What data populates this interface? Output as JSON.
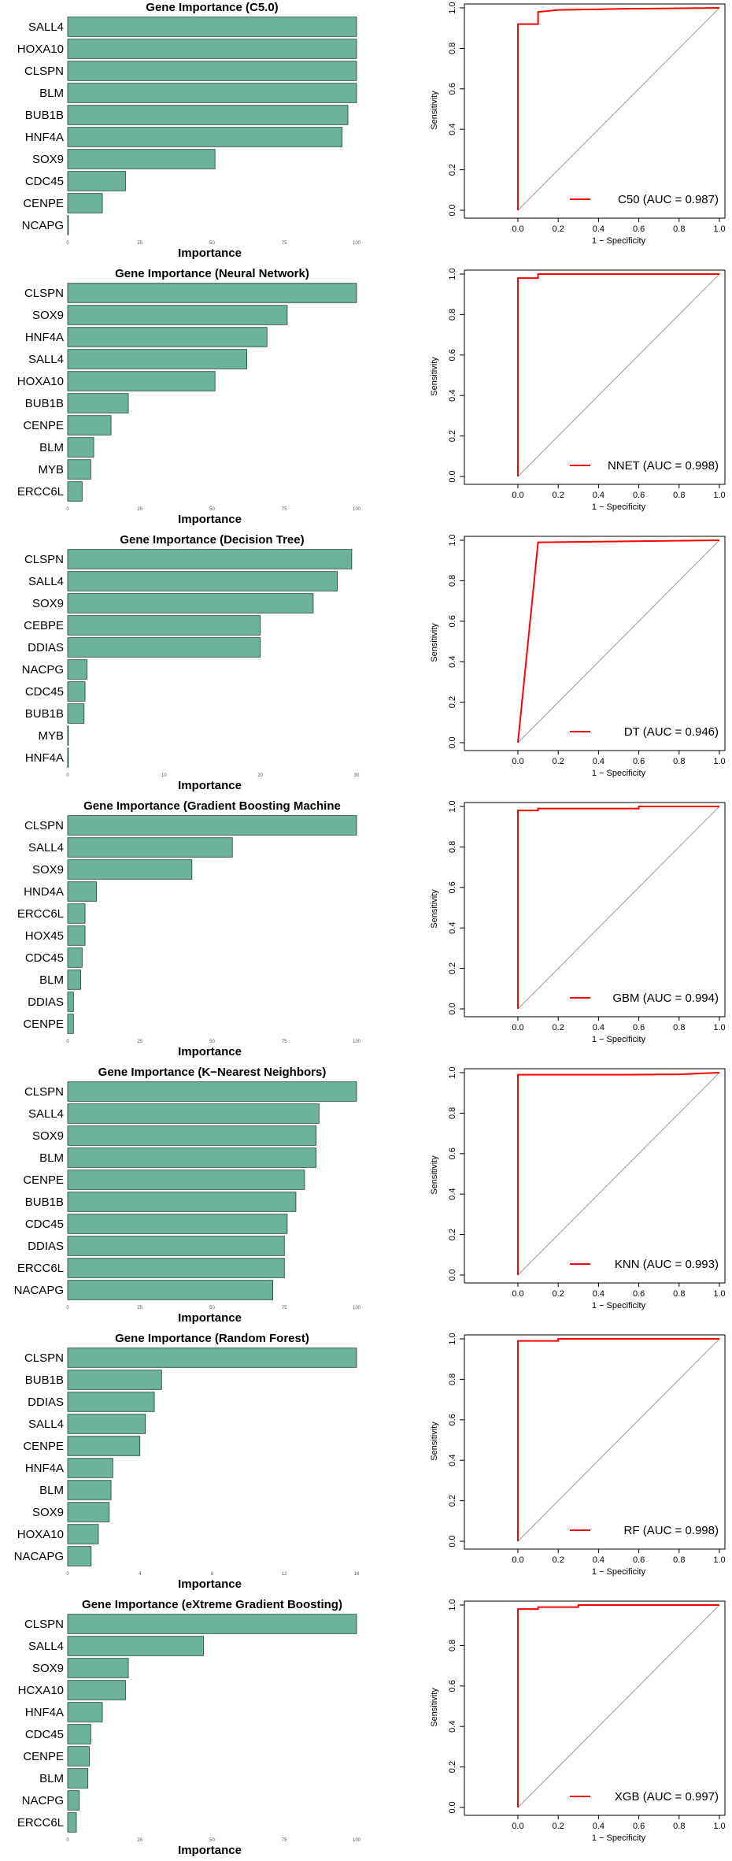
{
  "colors": {
    "bar_fill": "#6DB39B",
    "bar_stroke": "#1F3F35",
    "roc_line": "#FF0000",
    "diagonal": "#9A9A9A"
  },
  "roc_axes": {
    "xlabel": "1 − Specificity",
    "ylabel": "Sensitivity",
    "ticks": [
      "0.0",
      "0.2",
      "0.4",
      "0.6",
      "0.8",
      "1.0"
    ]
  },
  "chart_data": [
    {
      "type": "bar",
      "title": "Gene Importance (C5.0)",
      "xlabel": "Importance",
      "categories": [
        "SALL4",
        "HOXA10",
        "CLSPN",
        "BLM",
        "BUB1B",
        "HNF4A",
        "SOX9",
        "CDC45",
        "CENPE",
        "NCAPG"
      ],
      "values": [
        100,
        100,
        100,
        100,
        97,
        95,
        51,
        20,
        12,
        0
      ],
      "xlim": [
        0,
        100
      ],
      "xticks": [
        "0",
        "25",
        "50",
        "75",
        "100"
      ]
    },
    {
      "type": "line",
      "legend": "C50 (AUC = 0.987)",
      "xlim": [
        0,
        1
      ],
      "ylim": [
        0,
        1
      ],
      "points": [
        [
          0,
          0
        ],
        [
          0,
          0.92
        ],
        [
          0.1,
          0.92
        ],
        [
          0.1,
          0.98
        ],
        [
          0.2,
          0.99
        ],
        [
          0.5,
          0.995
        ],
        [
          1.0,
          1.0
        ]
      ]
    },
    {
      "type": "bar",
      "title": "Gene Importance (Neural Network)",
      "xlabel": "Importance",
      "categories": [
        "CLSPN",
        "SOX9",
        "HNF4A",
        "SALL4",
        "HOXA10",
        "BUB1B",
        "CENPE",
        "BLM",
        "MYB",
        "ERCC6L"
      ],
      "values": [
        100,
        76,
        69,
        62,
        51,
        21,
        15,
        9,
        8,
        5
      ],
      "xlim": [
        0,
        100
      ],
      "xticks": [
        "0",
        "25",
        "50",
        "75",
        "100"
      ]
    },
    {
      "type": "line",
      "legend": "NNET (AUC = 0.998)",
      "xlim": [
        0,
        1
      ],
      "ylim": [
        0,
        1
      ],
      "points": [
        [
          0,
          0
        ],
        [
          0,
          0.98
        ],
        [
          0.1,
          0.98
        ],
        [
          0.1,
          1.0
        ],
        [
          1.0,
          1.0
        ]
      ]
    },
    {
      "type": "bar",
      "title": "Gene Importance (Decision Tree)",
      "xlabel": "Importance",
      "categories": [
        "CLSPN",
        "SALL4",
        "SOX9",
        "CEBPE",
        "DDIAS",
        "NACPG",
        "CDC45",
        "BUB1B",
        "MYB",
        "HNF4A"
      ],
      "values": [
        29.5,
        28,
        25.5,
        20,
        20,
        2,
        1.8,
        1.7,
        0,
        0
      ],
      "xlim": [
        0,
        30
      ],
      "xticks": [
        "0",
        "10",
        "20",
        "30"
      ]
    },
    {
      "type": "line",
      "legend": "DT (AUC = 0.946)",
      "xlim": [
        0,
        1
      ],
      "ylim": [
        0,
        1
      ],
      "points": [
        [
          0,
          0
        ],
        [
          0.1,
          0.99
        ],
        [
          1.0,
          1.0
        ]
      ]
    },
    {
      "type": "bar",
      "title": "Gene Importance (Gradient Boosting Machine",
      "xlabel": "Importance",
      "categories": [
        "CLSPN",
        "SALL4",
        "SOX9",
        "HND4A",
        "ERCC6L",
        "HOX45",
        "CDC45",
        "BLM",
        "DDIAS",
        "CENPE"
      ],
      "values": [
        100,
        57,
        43,
        10,
        6,
        6,
        5,
        4.5,
        2,
        2
      ],
      "xlim": [
        0,
        100
      ],
      "xticks": [
        "0",
        "25",
        "50",
        "75",
        "100"
      ]
    },
    {
      "type": "line",
      "legend": "GBM (AUC = 0.994)",
      "xlim": [
        0,
        1
      ],
      "ylim": [
        0,
        1
      ],
      "points": [
        [
          0,
          0
        ],
        [
          0,
          0.98
        ],
        [
          0.1,
          0.98
        ],
        [
          0.1,
          0.99
        ],
        [
          0.6,
          0.99
        ],
        [
          0.6,
          1.0
        ],
        [
          1.0,
          1.0
        ]
      ]
    },
    {
      "type": "bar",
      "title": "Gene Importance (K−Nearest Neighbors)",
      "xlabel": "Importance",
      "categories": [
        "CLSPN",
        "SALL4",
        "SOX9",
        "BLM",
        "CENPE",
        "BUB1B",
        "CDC45",
        "DDIAS",
        "ERCC6L",
        "NACAPG"
      ],
      "values": [
        100,
        87,
        86,
        86,
        82,
        79,
        76,
        75,
        75,
        71
      ],
      "xlim": [
        0,
        100
      ],
      "xticks": [
        "0",
        "25",
        "50",
        "75",
        "100"
      ]
    },
    {
      "type": "line",
      "legend": "KNN (AUC = 0.993)",
      "xlim": [
        0,
        1
      ],
      "ylim": [
        0,
        1
      ],
      "points": [
        [
          0,
          0
        ],
        [
          0,
          0.99
        ],
        [
          0.5,
          0.99
        ],
        [
          0.8,
          0.992
        ],
        [
          1.0,
          1.0
        ]
      ]
    },
    {
      "type": "bar",
      "title": "Gene Importance (Random Forest)",
      "xlabel": "Importance",
      "categories": [
        "CLSPN",
        "BUB1B",
        "DDIAS",
        "SALL4",
        "CENPE",
        "HNF4A",
        "BLM",
        "SOX9",
        "HOXA10",
        "NACAPG"
      ],
      "values": [
        16,
        5.2,
        4.8,
        4.3,
        4.0,
        2.5,
        2.4,
        2.3,
        1.7,
        1.3
      ],
      "xlim": [
        0,
        16
      ],
      "xticks": [
        "0",
        "4",
        "8",
        "12",
        "16"
      ]
    },
    {
      "type": "line",
      "legend": "RF (AUC = 0.998)",
      "xlim": [
        0,
        1
      ],
      "ylim": [
        0,
        1
      ],
      "points": [
        [
          0,
          0
        ],
        [
          0,
          0.99
        ],
        [
          0.2,
          0.99
        ],
        [
          0.2,
          1.0
        ],
        [
          1.0,
          1.0
        ]
      ]
    },
    {
      "type": "bar",
      "title": "Gene Importance (eXtreme Gradient Boosting)",
      "xlabel": "Importance",
      "categories": [
        "CLSPN",
        "SALL4",
        "SOX9",
        "HCXA10",
        "HNF4A",
        "CDC45",
        "CENPE",
        "BLM",
        "NACPG",
        "ERCC6L"
      ],
      "values": [
        100,
        47,
        21,
        20,
        12,
        8,
        7.5,
        7,
        4,
        3
      ],
      "xlim": [
        0,
        100
      ],
      "xticks": [
        "0",
        "25",
        "50",
        "75",
        "100"
      ]
    },
    {
      "type": "line",
      "legend": "XGB (AUC = 0.997)",
      "xlim": [
        0,
        1
      ],
      "ylim": [
        0,
        1
      ],
      "points": [
        [
          0,
          0
        ],
        [
          0,
          0.98
        ],
        [
          0.1,
          0.98
        ],
        [
          0.1,
          0.99
        ],
        [
          0.3,
          0.99
        ],
        [
          0.3,
          1.0
        ],
        [
          1.0,
          1.0
        ]
      ]
    }
  ]
}
